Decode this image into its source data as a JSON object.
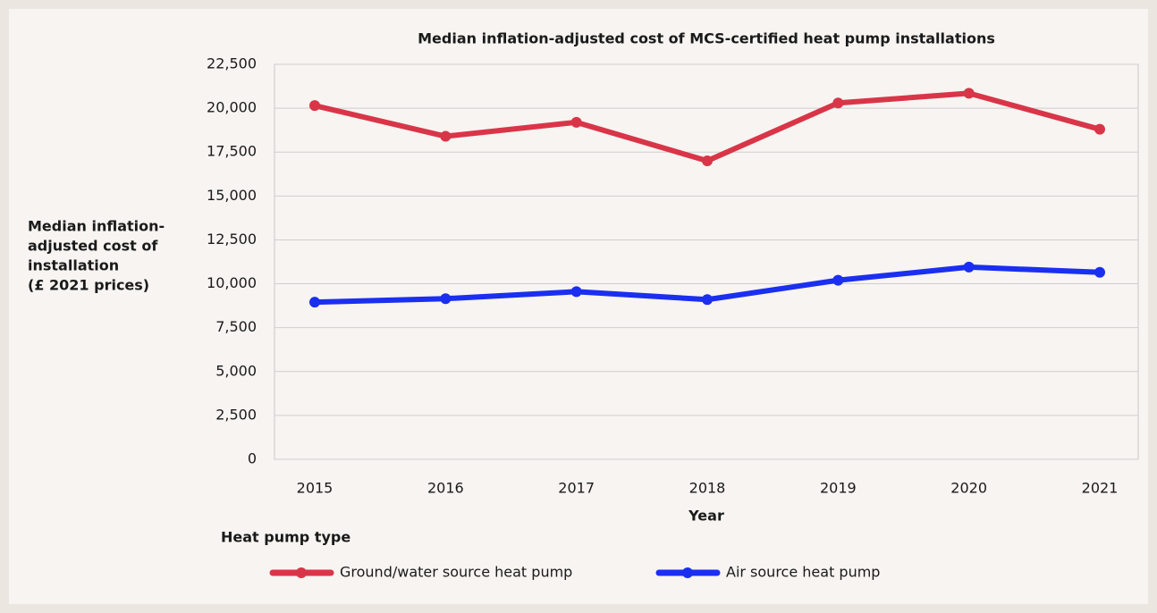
{
  "chart_data": {
    "type": "line",
    "title": "Median inflation-adjusted cost of MCS-certified heat pump installations",
    "xlabel": "Year",
    "ylabel": [
      "Median inflation-",
      "adjusted cost of",
      "installation",
      "(£ 2021 prices)"
    ],
    "categories": [
      "2015",
      "2016",
      "2017",
      "2018",
      "2019",
      "2020",
      "2021"
    ],
    "series": [
      {
        "name": "Ground/water source heat pump",
        "color": "#d93548",
        "values": [
          20150,
          18400,
          19200,
          17000,
          20300,
          20850,
          18800
        ]
      },
      {
        "name": "Air source heat pump",
        "color": "#1a2ff0",
        "values": [
          8950,
          9150,
          9550,
          9100,
          10200,
          10950,
          10650
        ]
      }
    ],
    "ylim": [
      0,
      22500
    ],
    "yticks": [
      0,
      {
        "value": 2500,
        "label": "2,500"
      },
      {
        "value": 5000,
        "label": "5,000"
      },
      {
        "value": 7500,
        "label": "7,500"
      },
      {
        "value": 10000,
        "label": "10,000"
      },
      {
        "value": 12500,
        "label": "12,500"
      },
      {
        "value": 15000,
        "label": "15,000"
      },
      {
        "value": 17500,
        "label": "17,500"
      },
      {
        "value": 20000,
        "label": "20,000"
      },
      {
        "value": 22500,
        "label": "22,500"
      }
    ],
    "grid": true,
    "legend_title": "Heat pump type",
    "legend": "bottom-left"
  }
}
